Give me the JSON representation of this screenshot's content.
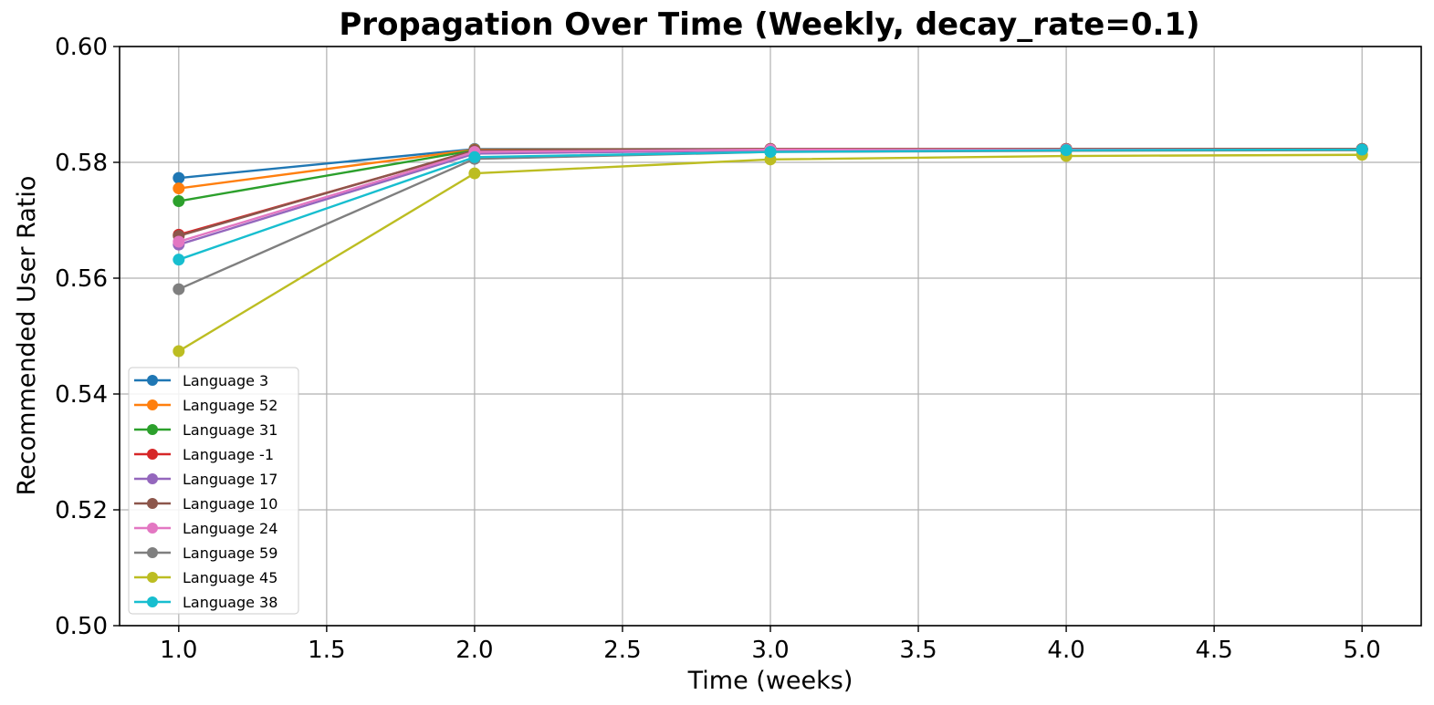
{
  "chart_data": {
    "type": "line",
    "title": "Propagation Over Time (Weekly, decay_rate=0.1)",
    "xlabel": "Time (weeks)",
    "ylabel": "Recommended User Ratio",
    "xlim": [
      0.8,
      5.2
    ],
    "ylim": [
      0.5,
      0.6
    ],
    "x_ticks": [
      1.0,
      1.5,
      2.0,
      2.5,
      3.0,
      3.5,
      4.0,
      4.5,
      5.0
    ],
    "x_tick_labels": [
      "1.0",
      "1.5",
      "2.0",
      "2.5",
      "3.0",
      "3.5",
      "4.0",
      "4.5",
      "5.0"
    ],
    "y_ticks": [
      0.5,
      0.52,
      0.54,
      0.56,
      0.58,
      0.6
    ],
    "y_tick_labels": [
      "0.50",
      "0.52",
      "0.54",
      "0.56",
      "0.58",
      "0.60"
    ],
    "grid": true,
    "legend_position": "lower-left",
    "x": [
      1,
      2,
      3,
      4,
      5
    ],
    "series": [
      {
        "name": "Language 3",
        "color": "#1f77b4",
        "values": [
          0.5773,
          0.5823,
          0.5823,
          0.5823,
          0.5823
        ]
      },
      {
        "name": "Language 52",
        "color": "#ff7f0e",
        "values": [
          0.5755,
          0.5822,
          0.5823,
          0.5823,
          0.5823
        ]
      },
      {
        "name": "Language 31",
        "color": "#2ca02c",
        "values": [
          0.5733,
          0.5821,
          0.5822,
          0.5823,
          0.5823
        ]
      },
      {
        "name": "Language -1",
        "color": "#d62728",
        "values": [
          0.5675,
          0.582,
          0.5823,
          0.5823,
          0.5823
        ]
      },
      {
        "name": "Language 17",
        "color": "#9467bd",
        "values": [
          0.5658,
          0.5815,
          0.5821,
          0.5822,
          0.5822
        ]
      },
      {
        "name": "Language 10",
        "color": "#8c564b",
        "values": [
          0.5673,
          0.5821,
          0.5823,
          0.5823,
          0.5823
        ]
      },
      {
        "name": "Language 24",
        "color": "#e377c2",
        "values": [
          0.5663,
          0.5818,
          0.5822,
          0.5822,
          0.5822
        ]
      },
      {
        "name": "Language 59",
        "color": "#7f7f7f",
        "values": [
          0.5581,
          0.5806,
          0.5818,
          0.582,
          0.5821
        ]
      },
      {
        "name": "Language 45",
        "color": "#bcbd22",
        "values": [
          0.5474,
          0.5781,
          0.5805,
          0.5811,
          0.5813
        ]
      },
      {
        "name": "Language 38",
        "color": "#17becf",
        "values": [
          0.5632,
          0.5809,
          0.5818,
          0.5821,
          0.5822
        ]
      }
    ]
  }
}
